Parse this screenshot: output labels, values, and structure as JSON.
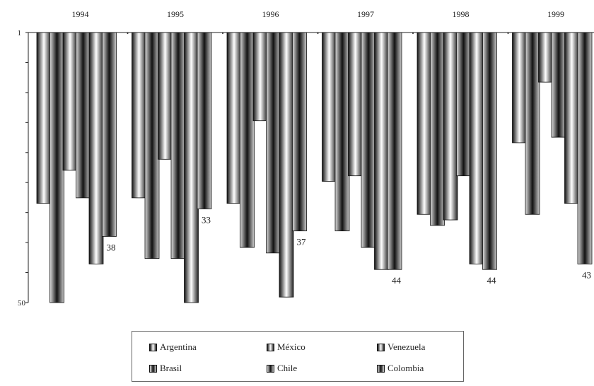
{
  "chart_data": {
    "type": "bar",
    "categories": [
      "1994",
      "1995",
      "1996",
      "1997",
      "1998",
      "1999"
    ],
    "y_axis": {
      "min": 1,
      "max": 50,
      "inverted": true,
      "tick_labels": [
        "1",
        "50"
      ]
    },
    "series": [
      {
        "name": "Argentina",
        "values": [
          32,
          31,
          32,
          28,
          34,
          21
        ],
        "style": "white-center"
      },
      {
        "name": "Brasil",
        "values": [
          50,
          42,
          40,
          37,
          36,
          34
        ],
        "style": "dark-center"
      },
      {
        "name": "Mexico",
        "label": "México",
        "values": [
          26,
          24,
          17,
          27,
          35,
          10
        ],
        "style": "white-center"
      },
      {
        "name": "Chile",
        "values": [
          31,
          42,
          41,
          40,
          27,
          20
        ],
        "style": "dark-center"
      },
      {
        "name": "Venezuela",
        "values": [
          43,
          50,
          49,
          44,
          43,
          32
        ],
        "style": "white-center"
      },
      {
        "name": "Colombia",
        "values": [
          38,
          33,
          37,
          44,
          44,
          43
        ],
        "style": "dark-center"
      }
    ],
    "data_labels": [
      {
        "category": "1994",
        "series": "Colombia",
        "text": "38"
      },
      {
        "category": "1995",
        "series": "Colombia",
        "text": "33"
      },
      {
        "category": "1996",
        "series": "Colombia",
        "text": "37"
      },
      {
        "category": "1997",
        "series": "Colombia",
        "text": "44"
      },
      {
        "category": "1998",
        "series": "Colombia",
        "text": "44"
      },
      {
        "category": "1999",
        "series": "Colombia",
        "text": "43"
      }
    ],
    "legend": {
      "position": "bottom",
      "rows": [
        [
          "Argentina",
          "México",
          "Venezuela"
        ],
        [
          "Brasil",
          "Chile",
          "Colombia"
        ]
      ]
    }
  }
}
